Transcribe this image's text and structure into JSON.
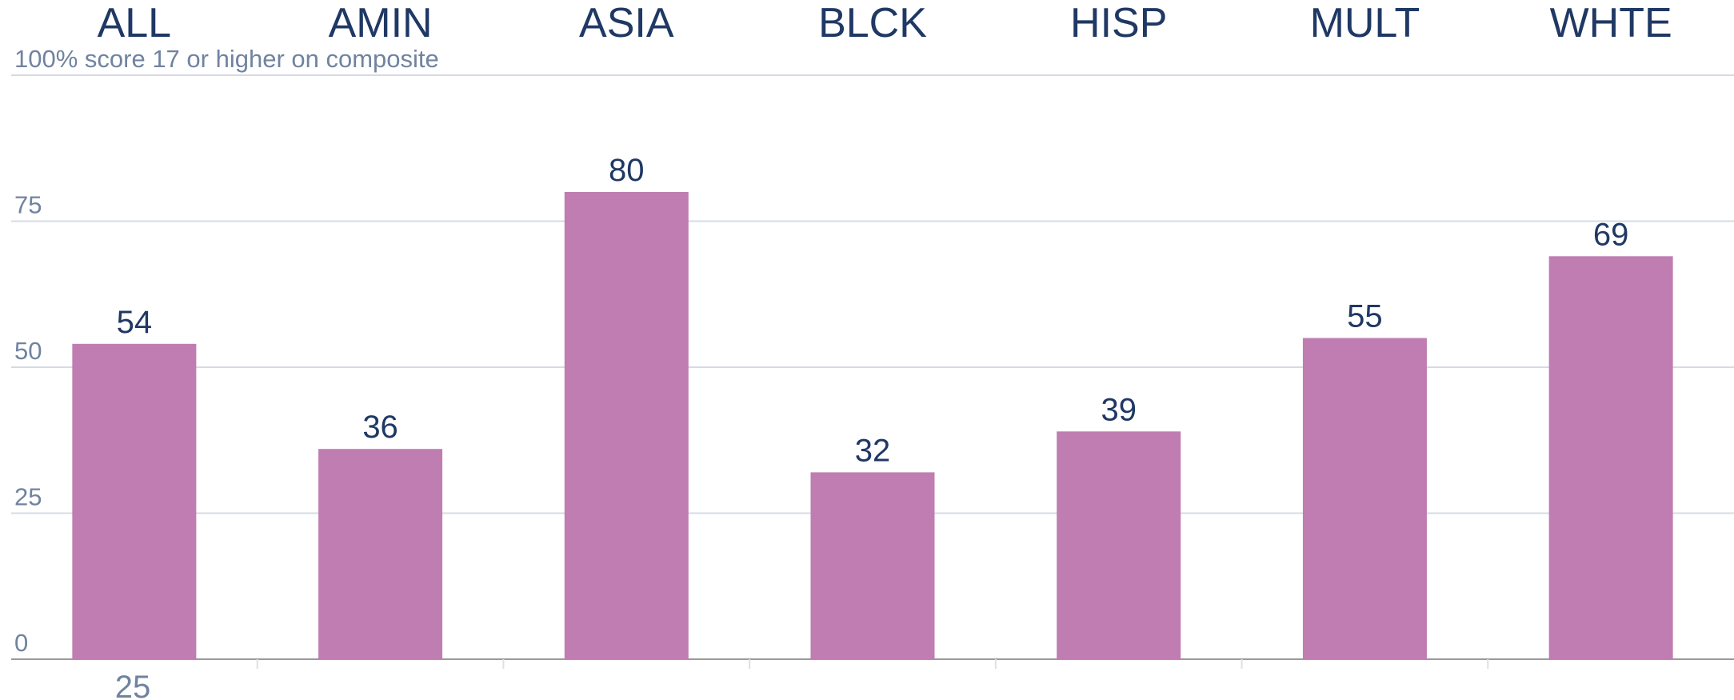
{
  "chart_data": {
    "type": "bar",
    "categories": [
      "ALL",
      "AMIN",
      "ASIA",
      "BLCK",
      "HISP",
      "MULT",
      "WHTE"
    ],
    "values": [
      54,
      36,
      80,
      32,
      39,
      55,
      69
    ],
    "color": "#bf7db2",
    "ylim": [
      0,
      100
    ],
    "yticks": [
      0,
      25,
      50,
      75,
      {
        "value": 100,
        "label": "100% score 17 or higher on composite"
      }
    ],
    "grid": true,
    "annotation": "25"
  }
}
